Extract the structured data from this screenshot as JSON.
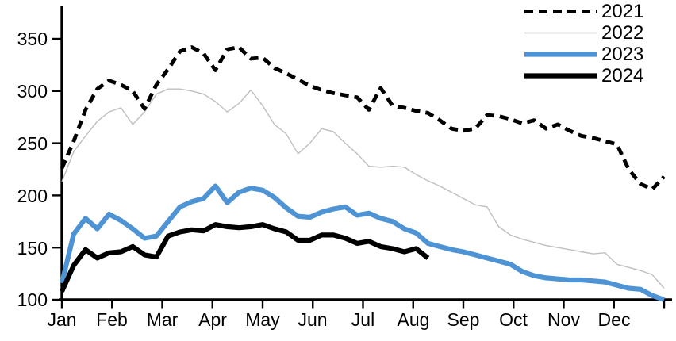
{
  "chart_data": {
    "type": "line",
    "title": "",
    "x_unit": "weekly",
    "categories": [
      "Jan",
      "Feb",
      "Mar",
      "Apr",
      "May",
      "Jun",
      "Jul",
      "Aug",
      "Sep",
      "Oct",
      "Nov",
      "Dec"
    ],
    "ytick_labels": [
      "100",
      "150",
      "200",
      "250",
      "300",
      "350"
    ],
    "ylim": [
      100,
      350
    ],
    "grid": false,
    "legend_position": "top-right",
    "series": [
      {
        "name": "2021",
        "color": "#000000",
        "style": "dashed",
        "width": 4.8,
        "values": [
          226,
          252,
          282,
          302,
          310,
          306,
          300,
          283,
          306,
          321,
          338,
          342,
          336,
          320,
          340,
          342,
          331,
          332,
          322,
          317,
          311,
          305,
          301,
          298,
          296,
          294,
          282,
          303,
          286,
          284,
          281,
          279,
          272,
          264,
          262,
          264,
          277,
          276,
          273,
          269,
          272,
          264,
          268,
          262,
          257,
          255,
          252,
          249,
          225,
          211,
          206,
          218
        ]
      },
      {
        "name": "2022",
        "color": "#BFBFBF",
        "style": "solid",
        "width": 1.4,
        "values": [
          213,
          242,
          257,
          271,
          280,
          284,
          268,
          280,
          297,
          302,
          302,
          300,
          297,
          290,
          280,
          288,
          301,
          286,
          268,
          259,
          240,
          250,
          264,
          261,
          250,
          240,
          228,
          227,
          228,
          227,
          220,
          214,
          209,
          203,
          197,
          191,
          189,
          170,
          162,
          158,
          155,
          152,
          150,
          148,
          146,
          144,
          145,
          134,
          131,
          128,
          124,
          111
        ]
      },
      {
        "name": "2023",
        "color": "#4E94D5",
        "style": "solid",
        "width": 6.2,
        "values": [
          116,
          163,
          178,
          168,
          182,
          176,
          168,
          159,
          161,
          175,
          189,
          194,
          197,
          209,
          193,
          203,
          207,
          205,
          198,
          188,
          180,
          179,
          184,
          187,
          189,
          181,
          183,
          178,
          175,
          168,
          164,
          154,
          151,
          148,
          146,
          143,
          140,
          137,
          134,
          127,
          123,
          121,
          120,
          119,
          119,
          118,
          117,
          114,
          111,
          110,
          104,
          100
        ]
      },
      {
        "name": "2024",
        "color": "#000000",
        "style": "solid",
        "width": 6.2,
        "values": [
          108,
          133,
          148,
          140,
          145,
          146,
          151,
          143,
          141,
          161,
          165,
          167,
          166,
          172,
          170,
          169,
          170,
          172,
          168,
          165,
          157,
          157,
          162,
          162,
          159,
          154,
          156,
          151,
          149,
          146,
          149,
          140
        ]
      }
    ]
  }
}
